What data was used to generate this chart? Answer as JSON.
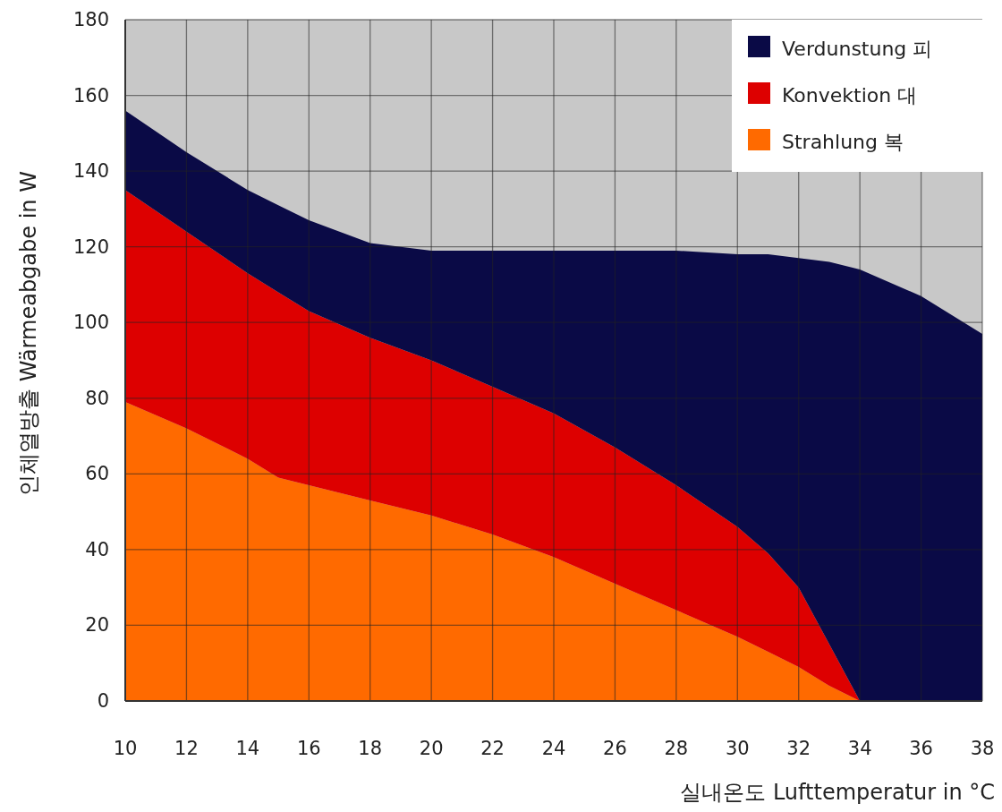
{
  "chart_data": {
    "type": "area",
    "stacked": true,
    "xlabel": "실내온도 Lufttemperatur in °C",
    "ylabel": "인체열방출 Wärmeabgabe in W",
    "x": [
      10,
      12,
      14,
      15,
      16,
      18,
      20,
      22,
      24,
      26,
      28,
      30,
      31,
      32,
      33,
      34,
      36,
      38
    ],
    "series": [
      {
        "name": "Strahlung 복",
        "color": "#ff6a00",
        "values": [
          79,
          72,
          64,
          59,
          57,
          53,
          49,
          44,
          38,
          31,
          24,
          17,
          13,
          9,
          4,
          0,
          0,
          0
        ]
      },
      {
        "name": "Konvektion 대",
        "color": "#dd0000",
        "values": [
          56,
          52,
          49,
          49,
          46,
          43,
          41,
          39,
          38,
          36,
          33,
          29,
          26,
          21,
          11,
          0,
          0,
          0
        ]
      },
      {
        "name": "Verdunstung 피",
        "color": "#0a0a46",
        "values": [
          21,
          21,
          22,
          23,
          24,
          25,
          29,
          36,
          43,
          52,
          62,
          72,
          79,
          87,
          101,
          114,
          107,
          97
        ]
      }
    ],
    "xlim": [
      10,
      38
    ],
    "ylim": [
      0,
      180
    ],
    "xticks": [
      10,
      12,
      14,
      16,
      18,
      20,
      22,
      24,
      26,
      28,
      30,
      32,
      34,
      36,
      38
    ],
    "yticks": [
      0,
      20,
      40,
      60,
      80,
      100,
      120,
      140,
      160,
      180
    ],
    "grid": true,
    "legend": "top right"
  }
}
